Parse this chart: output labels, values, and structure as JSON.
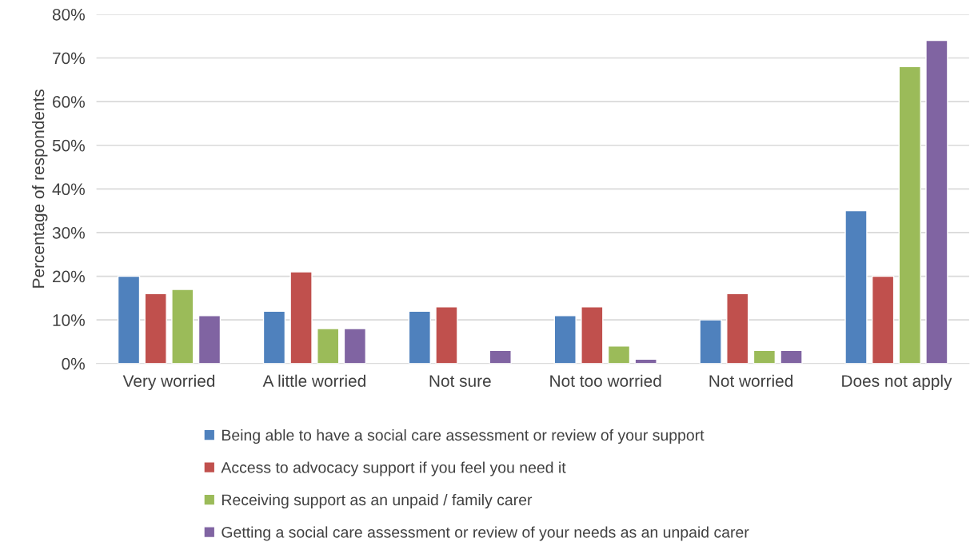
{
  "chart_data": {
    "type": "bar",
    "ylabel": "Percentage of respondents",
    "categories": [
      "Very worried",
      "A little worried",
      "Not sure",
      "Not too worried",
      "Not worried",
      "Does not apply"
    ],
    "series": [
      {
        "name": "Being able to have a social care assessment or review of your support",
        "color": "#4f81bd",
        "values": [
          20,
          12,
          12,
          11,
          10,
          35
        ]
      },
      {
        "name": "Access to advocacy support if you feel you need it",
        "color": "#c0504d",
        "values": [
          16,
          21,
          13,
          13,
          16,
          20
        ]
      },
      {
        "name": "Receiving support as an unpaid / family carer",
        "color": "#9bbb59",
        "values": [
          17,
          8,
          null,
          4,
          3,
          68
        ]
      },
      {
        "name": "Getting a social care assessment or review of your needs as an unpaid carer",
        "color": "#8064a2",
        "values": [
          11,
          8,
          3,
          1,
          3,
          74
        ]
      }
    ],
    "ylim": [
      0,
      80
    ],
    "yticks": [
      {
        "value": 0,
        "label": "0%"
      },
      {
        "value": 10,
        "label": "10%"
      },
      {
        "value": 20,
        "label": "20%"
      },
      {
        "value": 30,
        "label": "30%"
      },
      {
        "value": 40,
        "label": "40%"
      },
      {
        "value": 50,
        "label": "50%"
      },
      {
        "value": 60,
        "label": "60%"
      },
      {
        "value": 70,
        "label": "70%"
      },
      {
        "value": 80,
        "label": "80%"
      }
    ],
    "grid": "y",
    "legend": "bottom"
  }
}
